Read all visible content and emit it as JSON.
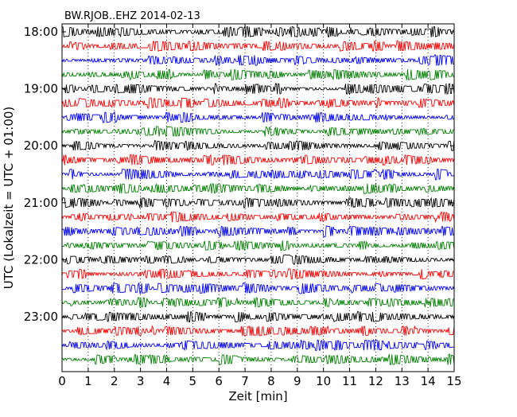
{
  "chart_data": {
    "type": "line",
    "title": "BW.RJOB..EHZ 2014-02-13",
    "xlabel": "Zeit  [min]",
    "ylabel": "UTC (Lokalzeit = UTC + 01:00)",
    "xlim": [
      0,
      15
    ],
    "x_ticks": [
      "0",
      "1",
      "2",
      "3",
      "4",
      "5",
      "6",
      "7",
      "8",
      "9",
      "10",
      "11",
      "12",
      "13",
      "14",
      "15"
    ],
    "y_ticks": [
      "18:00",
      "19:00",
      "20:00",
      "21:00",
      "22:00",
      "23:00"
    ],
    "trace_minutes": 15,
    "trace_count": 24,
    "trace_colors": [
      "#000000",
      "#ff0000",
      "#0000ff",
      "#008000"
    ],
    "grid": "vertical dotted lines at each minute",
    "legend": "none"
  }
}
